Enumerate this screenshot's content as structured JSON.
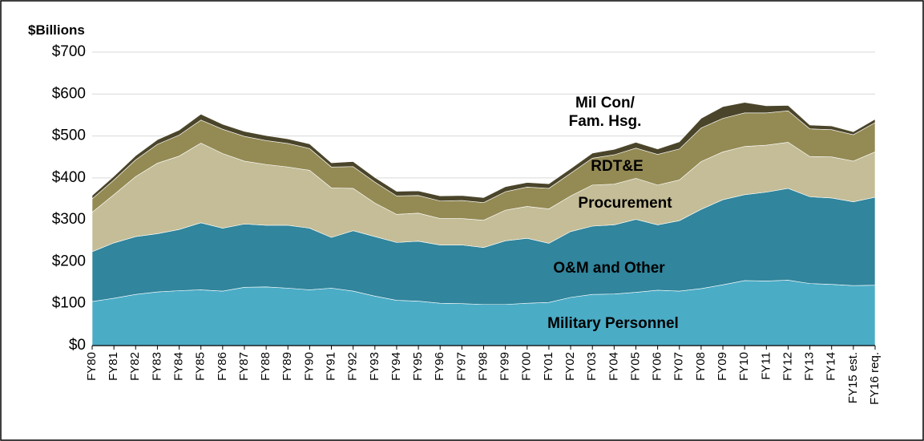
{
  "chart_data": {
    "type": "stacked_area",
    "y_axis_title": "$Billions",
    "categories": [
      "FY80",
      "FY81",
      "FY82",
      "FY83",
      "FY84",
      "FY85",
      "FY86",
      "FY87",
      "FY88",
      "FY89",
      "FY90",
      "FY91",
      "FY92",
      "FY93",
      "FY94",
      "FY95",
      "FY96",
      "FY97",
      "FY98",
      "FY99",
      "FY00",
      "FY01",
      "FY02",
      "FY03",
      "FY04",
      "FY05",
      "FY06",
      "FY07",
      "FY08",
      "FY09",
      "FY10",
      "FY11",
      "FY12",
      "FY13",
      "FY14",
      "FY15 est.",
      "FY16 req."
    ],
    "series": [
      {
        "name": "Military Personnel",
        "color": "#4bacc6",
        "values": [
          105,
          113,
          122,
          128,
          131,
          133,
          130,
          139,
          140,
          137,
          133,
          137,
          130,
          118,
          108,
          106,
          101,
          100,
          98,
          98,
          101,
          103,
          115,
          122,
          123,
          127,
          132,
          130,
          136,
          145,
          155,
          154,
          156,
          148,
          146,
          143,
          144
        ]
      },
      {
        "name": "O&M and Other",
        "color": "#31859c",
        "values": [
          119,
          132,
          138,
          139,
          146,
          160,
          150,
          151,
          147,
          150,
          147,
          121,
          144,
          142,
          138,
          143,
          139,
          140,
          136,
          152,
          155,
          141,
          157,
          163,
          165,
          174,
          156,
          168,
          189,
          203,
          205,
          212,
          219,
          207,
          206,
          200,
          210
        ]
      },
      {
        "name": "Procurement",
        "color": "#c4bd97",
        "values": [
          94,
          115,
          143,
          168,
          175,
          190,
          178,
          150,
          145,
          139,
          138,
          118,
          101,
          80,
          67,
          67,
          63,
          63,
          65,
          73,
          76,
          82,
          85,
          98,
          97,
          98,
          95,
          97,
          114,
          114,
          115,
          112,
          110,
          96,
          98,
          97,
          108
        ]
      },
      {
        "name": "RDT&E",
        "color": "#948a54",
        "values": [
          32,
          35,
          40,
          45,
          50,
          55,
          58,
          59,
          57,
          56,
          52,
          50,
          52,
          50,
          44,
          42,
          42,
          43,
          42,
          44,
          46,
          49,
          54,
          64,
          70,
          72,
          73,
          74,
          80,
          80,
          80,
          77,
          75,
          66,
          65,
          63,
          70
        ]
      },
      {
        "name": "Mil Con/ Fam. Hsg.",
        "color": "#4a452a",
        "values": [
          8,
          9,
          10,
          11,
          12,
          14,
          12,
          12,
          12,
          11,
          11,
          10,
          12,
          11,
          11,
          11,
          12,
          12,
          12,
          12,
          11,
          11,
          11,
          12,
          13,
          14,
          13,
          17,
          23,
          28,
          25,
          17,
          13,
          9,
          9,
          7,
          8
        ]
      }
    ],
    "ylim": [
      0,
      700
    ],
    "yticks": [
      {
        "value": 0,
        "label": "$0"
      },
      {
        "value": 100,
        "label": "$100"
      },
      {
        "value": 200,
        "label": "$200"
      },
      {
        "value": 300,
        "label": "$300"
      },
      {
        "value": 400,
        "label": "$400"
      },
      {
        "value": 500,
        "label": "$500"
      },
      {
        "value": 600,
        "label": "$600"
      },
      {
        "value": 700,
        "label": "$700"
      }
    ],
    "grid": true
  }
}
